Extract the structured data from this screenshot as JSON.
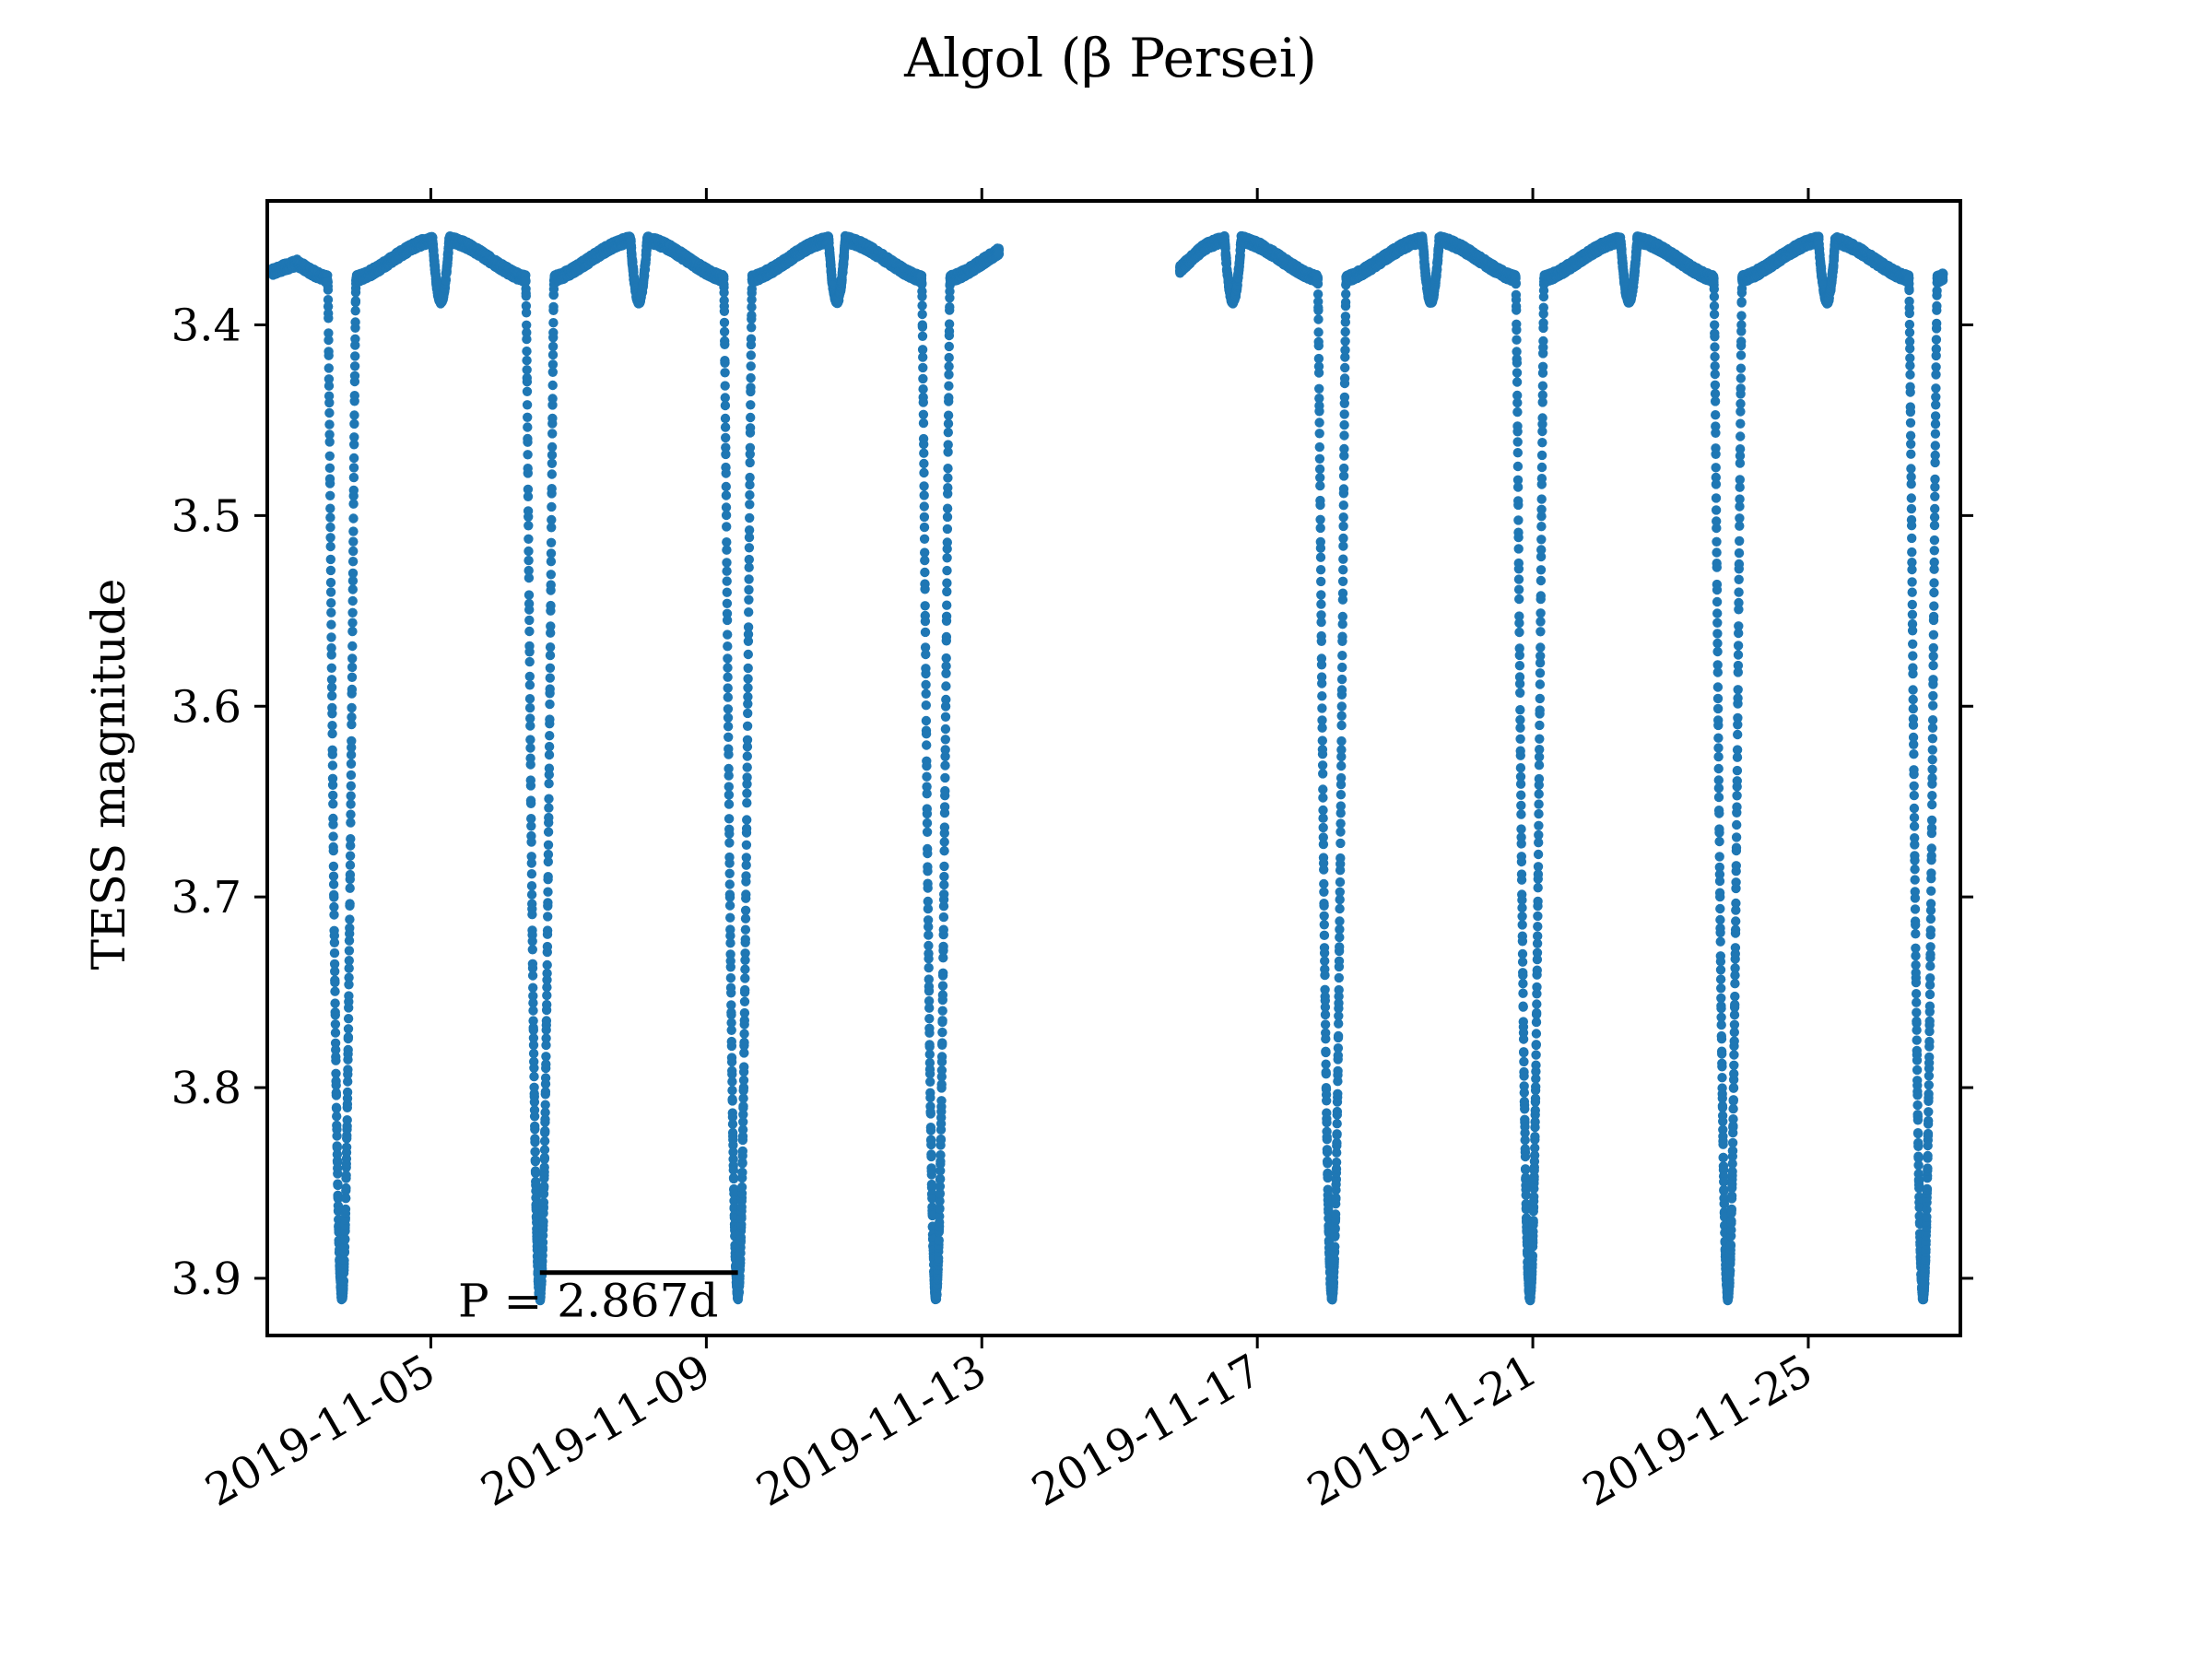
{
  "chart_data": {
    "type": "scatter",
    "title": "Algol (β Persei)",
    "xlabel": "",
    "ylabel": "TESS magnitude",
    "x_type": "date",
    "xlim": [
      "2019-11-02T15:00",
      "2019-11-27T05:00"
    ],
    "ylim": [
      3.93,
      3.335
    ],
    "y_inverted": true,
    "x_tick_labels": [
      "2019-11-05",
      "2019-11-09",
      "2019-11-13",
      "2019-11-17",
      "2019-11-21",
      "2019-11-25"
    ],
    "y_tick_labels": [
      "3.4",
      "3.5",
      "3.6",
      "3.7",
      "3.8",
      "3.9"
    ],
    "grid": false,
    "legend": "none",
    "marker_color": "#1f77b4",
    "series": [
      {
        "baseline_magnitude": 3.355,
        "primary_minimum_magnitude": 3.888,
        "secondary_minimum_magnitude": 3.387,
        "period_days": 2.867,
        "primary_minima": [
          "2019-11-03T17:00",
          "2019-11-06T14:00",
          "2019-11-09T11:00",
          "2019-11-12T08:00",
          "2019-11-18T02:00",
          "2019-11-20T23:00",
          "2019-11-23T20:00",
          "2019-11-26T16:00"
        ],
        "secondary_minima": [
          "2019-11-05T03:30",
          "2019-11-08T00:30",
          "2019-11-10T21:30",
          "2019-11-16T15:30",
          "2019-11-19T12:30",
          "2019-11-22T09:30",
          "2019-11-25T06:30"
        ],
        "segments": [
          [
            "2019-11-02T17:00",
            "2019-11-13T06:00"
          ],
          [
            "2019-11-15T21:00",
            "2019-11-26T23:00"
          ]
        ],
        "segment_start_magnitudes": [
          3.376,
          3.361
        ]
      }
    ],
    "annotations": [
      {
        "text": "P = 2.867d",
        "bar_from": "2019-11-06T14:00",
        "bar_to": "2019-11-09T11:00",
        "bar_magnitude": 3.897
      }
    ]
  }
}
